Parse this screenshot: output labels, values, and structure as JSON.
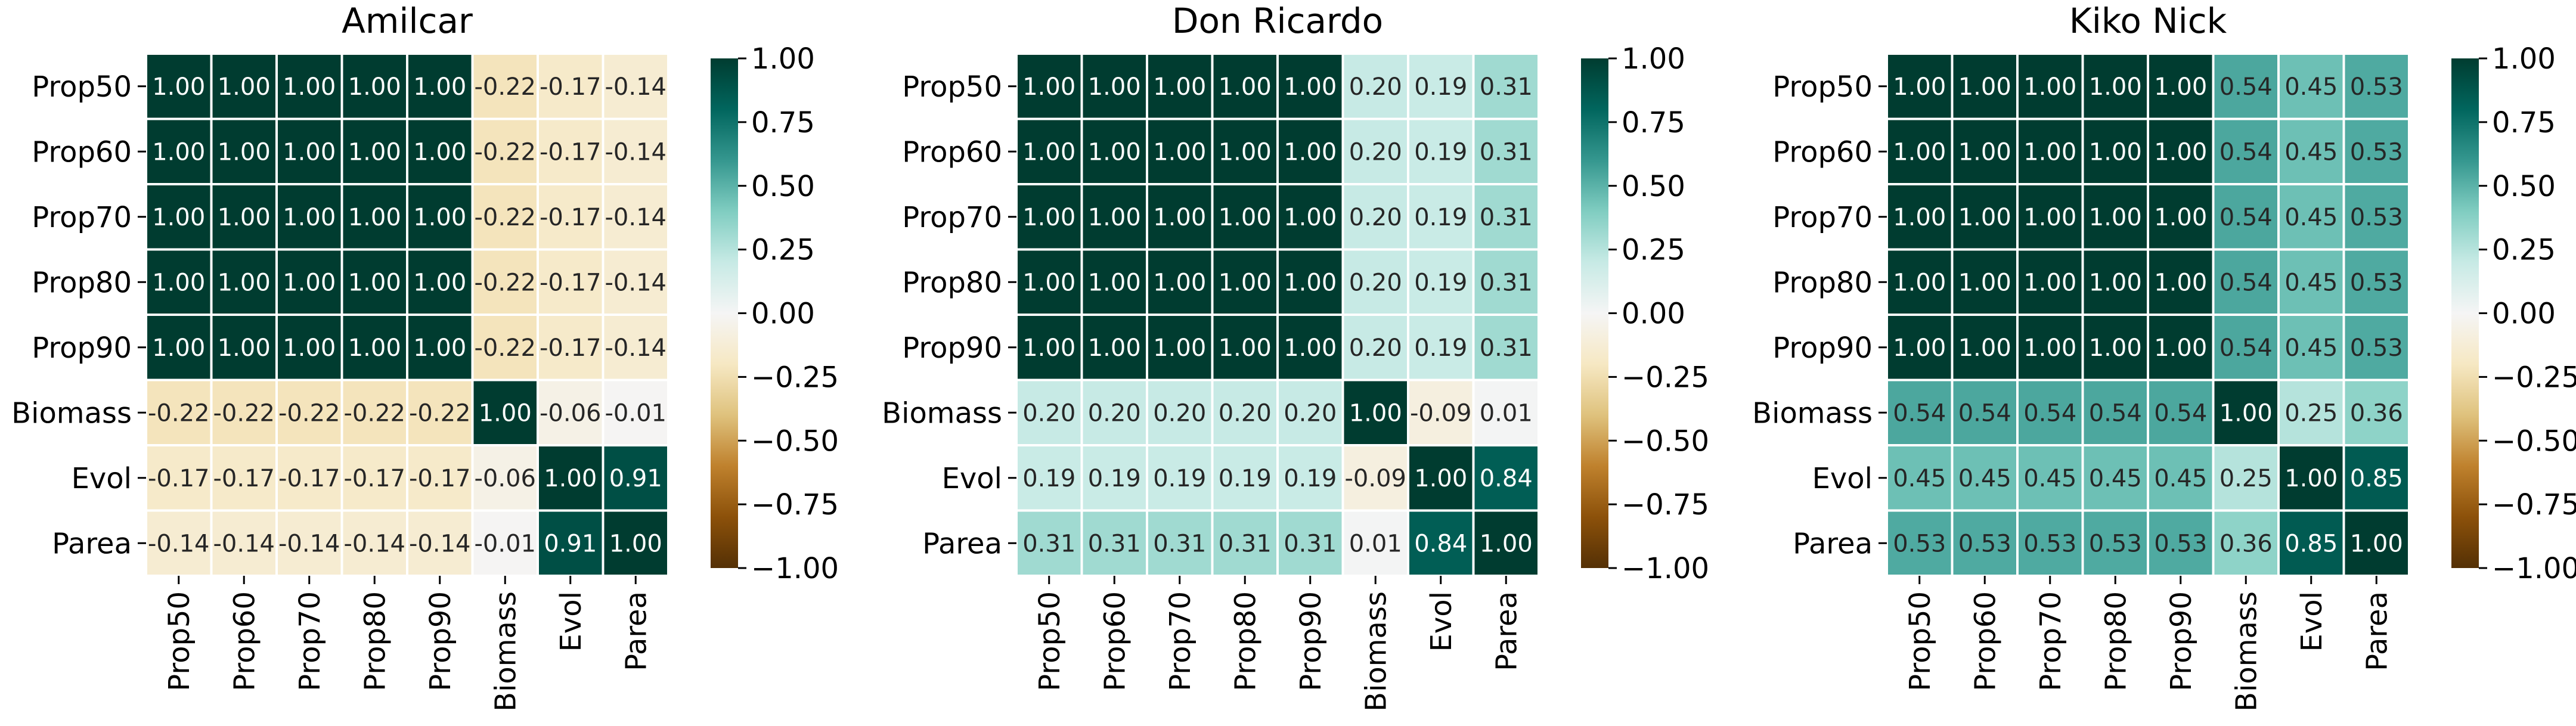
{
  "chart_data": [
    {
      "type": "heatmap",
      "title": "Amilcar",
      "rows": [
        "Prop50",
        "Prop60",
        "Prop70",
        "Prop80",
        "Prop90",
        "Biomass",
        "Evol",
        "Parea"
      ],
      "cols": [
        "Prop50",
        "Prop60",
        "Prop70",
        "Prop80",
        "Prop90",
        "Biomass",
        "Evol",
        "Parea"
      ],
      "values": [
        [
          1.0,
          1.0,
          1.0,
          1.0,
          1.0,
          -0.22,
          -0.17,
          -0.14
        ],
        [
          1.0,
          1.0,
          1.0,
          1.0,
          1.0,
          -0.22,
          -0.17,
          -0.14
        ],
        [
          1.0,
          1.0,
          1.0,
          1.0,
          1.0,
          -0.22,
          -0.17,
          -0.14
        ],
        [
          1.0,
          1.0,
          1.0,
          1.0,
          1.0,
          -0.22,
          -0.17,
          -0.14
        ],
        [
          1.0,
          1.0,
          1.0,
          1.0,
          1.0,
          -0.22,
          -0.17,
          -0.14
        ],
        [
          -0.22,
          -0.22,
          -0.22,
          -0.22,
          -0.22,
          1.0,
          -0.06,
          -0.01
        ],
        [
          -0.17,
          -0.17,
          -0.17,
          -0.17,
          -0.17,
          -0.06,
          1.0,
          0.91
        ],
        [
          -0.14,
          -0.14,
          -0.14,
          -0.14,
          -0.14,
          -0.01,
          0.91,
          1.0
        ]
      ],
      "vmin": -1.0,
      "vmax": 1.0,
      "colorbar_ticks": [
        "1.00",
        "0.75",
        "0.50",
        "0.25",
        "0.00",
        "−0.25",
        "−0.50",
        "−0.75",
        "−1.00"
      ],
      "colormap": "BrBG"
    },
    {
      "type": "heatmap",
      "title": "Don Ricardo",
      "rows": [
        "Prop50",
        "Prop60",
        "Prop70",
        "Prop80",
        "Prop90",
        "Biomass",
        "Evol",
        "Parea"
      ],
      "cols": [
        "Prop50",
        "Prop60",
        "Prop70",
        "Prop80",
        "Prop90",
        "Biomass",
        "Evol",
        "Parea"
      ],
      "values": [
        [
          1.0,
          1.0,
          1.0,
          1.0,
          1.0,
          0.2,
          0.19,
          0.31
        ],
        [
          1.0,
          1.0,
          1.0,
          1.0,
          1.0,
          0.2,
          0.19,
          0.31
        ],
        [
          1.0,
          1.0,
          1.0,
          1.0,
          1.0,
          0.2,
          0.19,
          0.31
        ],
        [
          1.0,
          1.0,
          1.0,
          1.0,
          1.0,
          0.2,
          0.19,
          0.31
        ],
        [
          1.0,
          1.0,
          1.0,
          1.0,
          1.0,
          0.2,
          0.19,
          0.31
        ],
        [
          0.2,
          0.2,
          0.2,
          0.2,
          0.2,
          1.0,
          -0.09,
          0.01
        ],
        [
          0.19,
          0.19,
          0.19,
          0.19,
          0.19,
          -0.09,
          1.0,
          0.84
        ],
        [
          0.31,
          0.31,
          0.31,
          0.31,
          0.31,
          0.01,
          0.84,
          1.0
        ]
      ],
      "vmin": -1.0,
      "vmax": 1.0,
      "colorbar_ticks": [
        "1.00",
        "0.75",
        "0.50",
        "0.25",
        "0.00",
        "−0.25",
        "−0.50",
        "−0.75",
        "−1.00"
      ],
      "colormap": "BrBG"
    },
    {
      "type": "heatmap",
      "title": "Kiko Nick",
      "rows": [
        "Prop50",
        "Prop60",
        "Prop70",
        "Prop80",
        "Prop90",
        "Biomass",
        "Evol",
        "Parea"
      ],
      "cols": [
        "Prop50",
        "Prop60",
        "Prop70",
        "Prop80",
        "Prop90",
        "Biomass",
        "Evol",
        "Parea"
      ],
      "values": [
        [
          1.0,
          1.0,
          1.0,
          1.0,
          1.0,
          0.54,
          0.45,
          0.53
        ],
        [
          1.0,
          1.0,
          1.0,
          1.0,
          1.0,
          0.54,
          0.45,
          0.53
        ],
        [
          1.0,
          1.0,
          1.0,
          1.0,
          1.0,
          0.54,
          0.45,
          0.53
        ],
        [
          1.0,
          1.0,
          1.0,
          1.0,
          1.0,
          0.54,
          0.45,
          0.53
        ],
        [
          1.0,
          1.0,
          1.0,
          1.0,
          1.0,
          0.54,
          0.45,
          0.53
        ],
        [
          0.54,
          0.54,
          0.54,
          0.54,
          0.54,
          1.0,
          0.25,
          0.36
        ],
        [
          0.45,
          0.45,
          0.45,
          0.45,
          0.45,
          0.25,
          1.0,
          0.85
        ],
        [
          0.53,
          0.53,
          0.53,
          0.53,
          0.53,
          0.36,
          0.85,
          1.0
        ]
      ],
      "vmin": -1.0,
      "vmax": 1.0,
      "colorbar_ticks": [
        "1.00",
        "0.75",
        "0.50",
        "0.25",
        "0.00",
        "−0.25",
        "−0.50",
        "−0.75",
        "−1.00"
      ],
      "colormap": "BrBG"
    }
  ]
}
